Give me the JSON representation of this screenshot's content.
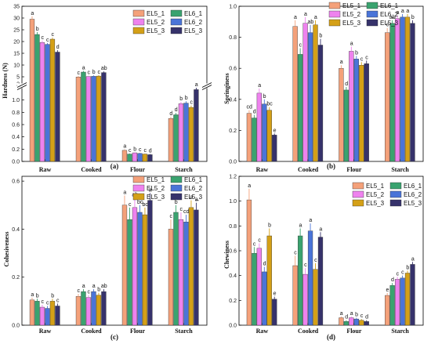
{
  "series_names": [
    "EL5_1",
    "EL6_1",
    "EL5_2",
    "EL6_2",
    "EL5_3",
    "EL5_3"
  ],
  "colors": [
    "#f4a17a",
    "#3aa36f",
    "#ee82ee",
    "#4a74d8",
    "#d4a017",
    "#36326b"
  ],
  "categories": [
    "Raw",
    "Cooked",
    "Flour",
    "Starch"
  ],
  "chart_data": [
    {
      "type": "bar",
      "panel": "(a)",
      "ylabel": "Hardness (N)",
      "categories": [
        "Raw",
        "Cooked",
        "Flour",
        "Starch"
      ],
      "ylim_lower": [
        0,
        1.2
      ],
      "ylim_upper": [
        2,
        35
      ],
      "yticks": [
        "0.0",
        "0.2",
        "0.4",
        "0.6",
        "0.8",
        "1.0",
        "2",
        "5",
        "10",
        "15",
        "20",
        "25",
        "30",
        "35"
      ],
      "legend": {
        "placement": "top-right",
        "cols": 2
      },
      "series": [
        {
          "name": "EL5_1",
          "values": [
            29.5,
            4.9,
            0.18,
            0.7
          ],
          "errors": [
            1.2,
            0.5,
            0.02,
            0.03
          ],
          "letters": [
            "a",
            "c",
            "a",
            "d"
          ]
        },
        {
          "name": "EL6_1",
          "values": [
            23.0,
            7.0,
            0.12,
            0.76
          ],
          "errors": [
            1.0,
            0.5,
            0.01,
            0.03
          ],
          "letters": [
            "b",
            "a",
            "c",
            "d"
          ]
        },
        {
          "name": "EL5_2",
          "values": [
            19.6,
            5.1,
            0.14,
            0.94
          ],
          "errors": [
            0.8,
            0.4,
            0.01,
            0.03
          ],
          "letters": [
            "c",
            "c",
            "b",
            "b"
          ]
        },
        {
          "name": "EL6_2",
          "values": [
            18.8,
            5.2,
            0.13,
            0.95
          ],
          "errors": [
            0.6,
            0.4,
            0.01,
            0.03
          ],
          "letters": [
            "c",
            "b",
            "c",
            "b"
          ]
        },
        {
          "name": "EL5_3",
          "values": [
            21.0,
            5.3,
            0.12,
            0.88
          ],
          "errors": [
            0.7,
            0.4,
            0.01,
            0.03
          ],
          "letters": [
            "c",
            "c",
            "c",
            "c"
          ]
        },
        {
          "name": "EL5_3",
          "values": [
            15.5,
            6.8,
            0.11,
            1.17
          ],
          "errors": [
            0.8,
            0.5,
            0.01,
            0.03
          ],
          "letters": [
            "d",
            "ab",
            "d",
            "a"
          ]
        }
      ]
    },
    {
      "type": "bar",
      "panel": "(b)",
      "ylabel": "Springiness",
      "categories": [
        "Raw",
        "Cooked",
        "Flour",
        "Starch"
      ],
      "ylim": [
        0,
        1.0
      ],
      "yticks": [
        "0.0",
        "0.2",
        "0.4",
        "0.6",
        "0.8",
        "1.0"
      ],
      "legend": {
        "placement": "top-right",
        "cols": 2
      },
      "series": [
        {
          "name": "EL5_1",
          "values": [
            0.31,
            0.87,
            0.6,
            0.83
          ],
          "errors": [
            0.02,
            0.04,
            0.02,
            0.03
          ],
          "letters": [
            "cd",
            "a",
            "a",
            "c"
          ]
        },
        {
          "name": "EL6_1",
          "values": [
            0.28,
            0.69,
            0.46,
            0.89
          ],
          "errors": [
            0.02,
            0.04,
            0.02,
            0.02
          ],
          "letters": [
            "d",
            "c",
            "d",
            "ab"
          ]
        },
        {
          "name": "EL5_2",
          "values": [
            0.44,
            0.89,
            0.71,
            0.92
          ],
          "errors": [
            0.03,
            0.04,
            0.03,
            0.02
          ],
          "letters": [
            "a",
            "a",
            "a",
            "a"
          ]
        },
        {
          "name": "EL6_2",
          "values": [
            0.37,
            0.83,
            0.66,
            0.93
          ],
          "errors": [
            0.03,
            0.05,
            0.02,
            0.02
          ],
          "letters": [
            "b",
            "ab",
            "b",
            "a"
          ]
        },
        {
          "name": "EL5_3",
          "values": [
            0.33,
            0.88,
            0.62,
            0.93
          ],
          "errors": [
            0.02,
            0.03,
            0.02,
            0.02
          ],
          "letters": [
            "bc",
            "a",
            "c",
            "a"
          ]
        },
        {
          "name": "EL5_3",
          "values": [
            0.17,
            0.75,
            0.63,
            0.89
          ],
          "errors": [
            0.01,
            0.04,
            0.02,
            0.02
          ],
          "letters": [
            "e",
            "b",
            "c",
            "b"
          ]
        }
      ]
    },
    {
      "type": "bar",
      "panel": "(c)",
      "ylabel": "Cohesiveness",
      "categories": [
        "Raw",
        "Cooked",
        "Flour",
        "Starch"
      ],
      "ylim": [
        0,
        0.62
      ],
      "yticks": [
        "0.0",
        "0.2",
        "0.4",
        "0.6"
      ],
      "legend": {
        "placement": "top-right",
        "cols": 2
      },
      "series": [
        {
          "name": "EL5_1",
          "values": [
            0.105,
            0.12,
            0.5,
            0.4
          ],
          "errors": [
            0.01,
            0.01,
            0.04,
            0.04
          ],
          "letters": [
            "a",
            "c",
            "a",
            "c"
          ]
        },
        {
          "name": "EL6_1",
          "values": [
            0.1,
            0.14,
            0.44,
            0.47
          ],
          "errors": [
            0.01,
            0.01,
            0.05,
            0.03
          ],
          "letters": [
            "b",
            "a",
            "c",
            "b"
          ]
        },
        {
          "name": "EL5_2",
          "values": [
            0.075,
            0.115,
            0.49,
            0.44
          ],
          "errors": [
            0.01,
            0.01,
            0.04,
            0.03
          ],
          "letters": [
            "c",
            "c",
            "ab",
            "c"
          ]
        },
        {
          "name": "EL6_2",
          "values": [
            0.07,
            0.14,
            0.47,
            0.43
          ],
          "errors": [
            0.01,
            0.01,
            0.03,
            0.03
          ],
          "letters": [
            "c",
            "a",
            "bc",
            "cd"
          ]
        },
        {
          "name": "EL5_3",
          "values": [
            0.1,
            0.125,
            0.46,
            0.49
          ],
          "errors": [
            0.01,
            0.01,
            0.03,
            0.03
          ],
          "letters": [
            "b",
            "b",
            "bc",
            "a"
          ]
        },
        {
          "name": "EL5_3",
          "values": [
            0.08,
            0.14,
            0.52,
            0.48
          ],
          "errors": [
            0.01,
            0.01,
            0.03,
            0.03
          ],
          "letters": [
            "c",
            "ab",
            "a",
            "a"
          ]
        }
      ]
    },
    {
      "type": "bar",
      "panel": "(d)",
      "ylabel": "Chewiness",
      "categories": [
        "Raw",
        "Cooked",
        "Flour",
        "Starch"
      ],
      "ylim": [
        0,
        1.2
      ],
      "yticks": [
        "0.0",
        "0.2",
        "0.4",
        "0.6",
        "0.8",
        "1.0",
        "1.2"
      ],
      "legend": {
        "placement": "top-right",
        "cols": 2
      },
      "series": [
        {
          "name": "EL5_1",
          "values": [
            1.01,
            0.48,
            0.06,
            0.24
          ],
          "errors": [
            0.09,
            0.08,
            0.01,
            0.02
          ],
          "letters": [
            "a",
            "c",
            "a",
            "e"
          ]
        },
        {
          "name": "EL6_1",
          "values": [
            0.58,
            0.72,
            0.03,
            0.32
          ],
          "errors": [
            0.05,
            0.06,
            0.01,
            0.02
          ],
          "letters": [
            "c",
            "a",
            "d",
            "d"
          ]
        },
        {
          "name": "EL5_2",
          "values": [
            0.62,
            0.41,
            0.06,
            0.37
          ],
          "errors": [
            0.04,
            0.05,
            0.01,
            0.02
          ],
          "letters": [
            "c",
            "c",
            "a",
            "c"
          ]
        },
        {
          "name": "EL6_2",
          "values": [
            0.43,
            0.76,
            0.05,
            0.38
          ],
          "errors": [
            0.04,
            0.06,
            0.01,
            0.02
          ],
          "letters": [
            "d",
            "a",
            "b",
            "c"
          ]
        },
        {
          "name": "EL5_3",
          "values": [
            0.72,
            0.45,
            0.04,
            0.42
          ],
          "errors": [
            0.06,
            0.05,
            0.01,
            0.02
          ],
          "letters": [
            "b",
            "c",
            "c",
            "b"
          ]
        },
        {
          "name": "EL5_3",
          "values": [
            0.21,
            0.71,
            0.03,
            0.49
          ],
          "errors": [
            0.02,
            0.04,
            0.01,
            0.02
          ],
          "letters": [
            "e",
            "a",
            "d",
            "a"
          ]
        }
      ]
    }
  ]
}
